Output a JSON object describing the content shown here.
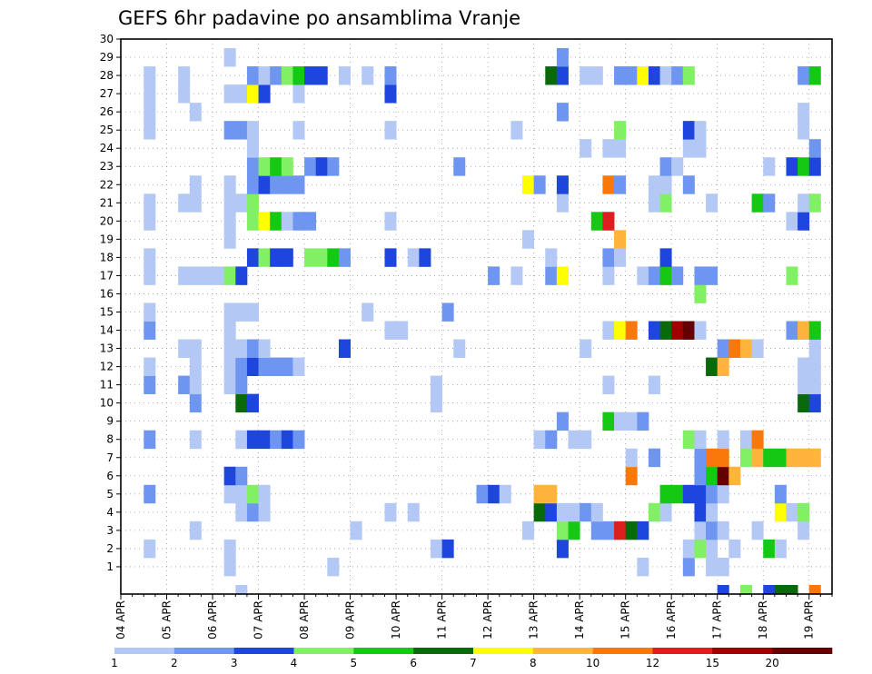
{
  "chart_data": {
    "type": "heatmap",
    "title": "GEFS 6hr padavine po ansamblima Vranje",
    "xlabel": "",
    "ylabel": "",
    "x_time_slots": 62,
    "x_tick_labels": [
      "04 APR",
      "05 APR",
      "06 APR",
      "07 APR",
      "08 APR",
      "09 APR",
      "10 APR",
      "11 APR",
      "12 APR",
      "13 APR",
      "14 APR",
      "15 APR",
      "16 APR",
      "17 APR",
      "18 APR",
      "19 APR"
    ],
    "y_members": [
      1,
      2,
      3,
      4,
      5,
      6,
      7,
      8,
      9,
      10,
      11,
      12,
      13,
      14,
      15,
      16,
      17,
      18,
      19,
      20,
      21,
      22,
      23,
      24,
      25,
      26,
      27,
      28,
      29,
      30
    ],
    "color_levels": [
      1,
      2,
      3,
      4,
      5,
      6,
      7,
      8,
      10,
      12,
      15,
      20
    ],
    "color_level_labels": [
      "1",
      "2",
      "3",
      "4",
      "5",
      "6",
      "7",
      "8",
      "10",
      "12",
      "15",
      "20"
    ],
    "colors": [
      "#b4c8f5",
      "#6e96f0",
      "#1e46dc",
      "#82f064",
      "#14c814",
      "#0a690a",
      "#ffff00",
      "#ffb43c",
      "#fa780a",
      "#dc1e1e",
      "#a00000",
      "#640000"
    ],
    "grid": "dotted",
    "cells": [
      [
        9,
        1,
        1
      ],
      [
        18,
        1,
        1
      ],
      [
        45,
        1,
        1
      ],
      [
        49,
        1,
        2
      ],
      [
        51,
        1,
        1
      ],
      [
        52,
        1,
        1
      ],
      [
        2,
        2,
        1
      ],
      [
        9,
        2,
        1
      ],
      [
        27,
        2,
        1
      ],
      [
        28,
        2,
        3
      ],
      [
        38,
        2,
        3
      ],
      [
        49,
        2,
        1
      ],
      [
        50,
        2,
        4
      ],
      [
        51,
        2,
        1
      ],
      [
        53,
        2,
        1
      ],
      [
        56,
        2,
        5
      ],
      [
        57,
        2,
        1
      ],
      [
        6,
        3,
        1
      ],
      [
        20,
        3,
        1
      ],
      [
        35,
        3,
        1
      ],
      [
        38,
        3,
        4
      ],
      [
        39,
        3,
        5
      ],
      [
        41,
        3,
        2
      ],
      [
        42,
        3,
        2
      ],
      [
        43,
        3,
        10
      ],
      [
        44,
        3,
        6
      ],
      [
        45,
        3,
        3
      ],
      [
        50,
        3,
        1
      ],
      [
        51,
        3,
        2
      ],
      [
        52,
        3,
        1
      ],
      [
        55,
        3,
        1
      ],
      [
        59,
        3,
        1
      ],
      [
        10,
        4,
        1
      ],
      [
        11,
        4,
        2
      ],
      [
        12,
        4,
        1
      ],
      [
        23,
        4,
        1
      ],
      [
        25,
        4,
        1
      ],
      [
        36,
        4,
        6
      ],
      [
        37,
        4,
        3
      ],
      [
        38,
        4,
        1
      ],
      [
        39,
        4,
        1
      ],
      [
        40,
        4,
        2
      ],
      [
        41,
        4,
        1
      ],
      [
        46,
        4,
        4
      ],
      [
        47,
        4,
        1
      ],
      [
        50,
        4,
        3
      ],
      [
        51,
        4,
        1
      ],
      [
        57,
        4,
        7
      ],
      [
        58,
        4,
        1
      ],
      [
        59,
        4,
        4
      ],
      [
        2,
        5,
        2
      ],
      [
        9,
        5,
        1
      ],
      [
        10,
        5,
        1
      ],
      [
        11,
        5,
        4
      ],
      [
        12,
        5,
        1
      ],
      [
        31,
        5,
        2
      ],
      [
        32,
        5,
        3
      ],
      [
        33,
        5,
        1
      ],
      [
        36,
        5,
        8
      ],
      [
        37,
        5,
        8
      ],
      [
        47,
        5,
        5
      ],
      [
        48,
        5,
        5
      ],
      [
        49,
        5,
        3
      ],
      [
        50,
        5,
        3
      ],
      [
        51,
        5,
        2
      ],
      [
        52,
        5,
        1
      ],
      [
        57,
        5,
        2
      ],
      [
        9,
        6,
        3
      ],
      [
        10,
        6,
        2
      ],
      [
        44,
        6,
        9
      ],
      [
        50,
        6,
        2
      ],
      [
        51,
        6,
        5
      ],
      [
        52,
        6,
        12
      ],
      [
        53,
        6,
        8
      ],
      [
        44,
        7,
        1
      ],
      [
        46,
        7,
        2
      ],
      [
        50,
        7,
        2
      ],
      [
        51,
        7,
        9
      ],
      [
        52,
        7,
        9
      ],
      [
        54,
        7,
        4
      ],
      [
        55,
        7,
        8
      ],
      [
        56,
        7,
        5
      ],
      [
        57,
        7,
        5
      ],
      [
        58,
        7,
        8
      ],
      [
        59,
        7,
        8
      ],
      [
        60,
        7,
        8
      ],
      [
        2,
        8,
        2
      ],
      [
        6,
        8,
        1
      ],
      [
        10,
        8,
        1
      ],
      [
        11,
        8,
        3
      ],
      [
        12,
        8,
        3
      ],
      [
        13,
        8,
        2
      ],
      [
        14,
        8,
        3
      ],
      [
        15,
        8,
        2
      ],
      [
        36,
        8,
        1
      ],
      [
        37,
        8,
        2
      ],
      [
        39,
        8,
        1
      ],
      [
        40,
        8,
        1
      ],
      [
        49,
        8,
        4
      ],
      [
        50,
        8,
        1
      ],
      [
        52,
        8,
        1
      ],
      [
        54,
        8,
        1
      ],
      [
        55,
        8,
        9
      ],
      [
        38,
        9,
        2
      ],
      [
        42,
        9,
        5
      ],
      [
        43,
        9,
        1
      ],
      [
        44,
        9,
        1
      ],
      [
        45,
        9,
        2
      ],
      [
        6,
        10,
        2
      ],
      [
        10,
        10,
        6
      ],
      [
        11,
        10,
        3
      ],
      [
        27,
        10,
        1
      ],
      [
        59,
        10,
        6
      ],
      [
        60,
        10,
        3
      ],
      [
        2,
        11,
        2
      ],
      [
        5,
        11,
        2
      ],
      [
        6,
        11,
        1
      ],
      [
        9,
        11,
        1
      ],
      [
        10,
        11,
        2
      ],
      [
        27,
        11,
        1
      ],
      [
        42,
        11,
        1
      ],
      [
        46,
        11,
        1
      ],
      [
        59,
        11,
        1
      ],
      [
        60,
        11,
        1
      ],
      [
        2,
        12,
        1
      ],
      [
        6,
        12,
        1
      ],
      [
        9,
        12,
        1
      ],
      [
        10,
        12,
        2
      ],
      [
        11,
        12,
        3
      ],
      [
        12,
        12,
        2
      ],
      [
        13,
        12,
        2
      ],
      [
        14,
        12,
        2
      ],
      [
        15,
        12,
        1
      ],
      [
        51,
        12,
        6
      ],
      [
        52,
        12,
        8
      ],
      [
        59,
        12,
        1
      ],
      [
        60,
        12,
        1
      ],
      [
        5,
        13,
        1
      ],
      [
        6,
        13,
        1
      ],
      [
        9,
        13,
        1
      ],
      [
        10,
        13,
        1
      ],
      [
        11,
        13,
        2
      ],
      [
        12,
        13,
        1
      ],
      [
        19,
        13,
        3
      ],
      [
        29,
        13,
        1
      ],
      [
        40,
        13,
        1
      ],
      [
        52,
        13,
        2
      ],
      [
        53,
        13,
        9
      ],
      [
        54,
        13,
        8
      ],
      [
        55,
        13,
        1
      ],
      [
        60,
        13,
        1
      ],
      [
        2,
        14,
        2
      ],
      [
        9,
        14,
        1
      ],
      [
        23,
        14,
        1
      ],
      [
        24,
        14,
        1
      ],
      [
        42,
        14,
        1
      ],
      [
        43,
        14,
        7
      ],
      [
        44,
        14,
        9
      ],
      [
        46,
        14,
        3
      ],
      [
        47,
        14,
        6
      ],
      [
        48,
        14,
        11
      ],
      [
        49,
        14,
        12
      ],
      [
        50,
        14,
        1
      ],
      [
        58,
        14,
        2
      ],
      [
        59,
        14,
        8
      ],
      [
        60,
        14,
        5
      ],
      [
        2,
        15,
        1
      ],
      [
        9,
        15,
        1
      ],
      [
        10,
        15,
        1
      ],
      [
        11,
        15,
        1
      ],
      [
        21,
        15,
        1
      ],
      [
        28,
        15,
        2
      ],
      [
        50,
        16,
        4
      ],
      [
        2,
        17,
        1
      ],
      [
        5,
        17,
        1
      ],
      [
        6,
        17,
        1
      ],
      [
        7,
        17,
        1
      ],
      [
        8,
        17,
        1
      ],
      [
        9,
        17,
        4
      ],
      [
        10,
        17,
        3
      ],
      [
        32,
        17,
        2
      ],
      [
        34,
        17,
        1
      ],
      [
        37,
        17,
        2
      ],
      [
        38,
        17,
        7
      ],
      [
        42,
        17,
        1
      ],
      [
        45,
        17,
        1
      ],
      [
        46,
        17,
        2
      ],
      [
        47,
        17,
        5
      ],
      [
        48,
        17,
        2
      ],
      [
        50,
        17,
        2
      ],
      [
        51,
        17,
        2
      ],
      [
        58,
        17,
        4
      ],
      [
        2,
        18,
        1
      ],
      [
        11,
        18,
        3
      ],
      [
        12,
        18,
        4
      ],
      [
        13,
        18,
        3
      ],
      [
        14,
        18,
        3
      ],
      [
        16,
        18,
        4
      ],
      [
        17,
        18,
        4
      ],
      [
        18,
        18,
        5
      ],
      [
        19,
        18,
        2
      ],
      [
        23,
        18,
        3
      ],
      [
        25,
        18,
        1
      ],
      [
        26,
        18,
        3
      ],
      [
        37,
        18,
        1
      ],
      [
        42,
        18,
        2
      ],
      [
        43,
        18,
        1
      ],
      [
        47,
        18,
        3
      ],
      [
        9,
        19,
        1
      ],
      [
        35,
        19,
        1
      ],
      [
        43,
        19,
        8
      ],
      [
        2,
        20,
        1
      ],
      [
        9,
        20,
        1
      ],
      [
        11,
        20,
        4
      ],
      [
        12,
        20,
        7
      ],
      [
        13,
        20,
        5
      ],
      [
        14,
        20,
        1
      ],
      [
        15,
        20,
        2
      ],
      [
        16,
        20,
        2
      ],
      [
        23,
        20,
        1
      ],
      [
        41,
        20,
        5
      ],
      [
        42,
        20,
        10
      ],
      [
        58,
        20,
        1
      ],
      [
        59,
        20,
        3
      ],
      [
        2,
        21,
        1
      ],
      [
        5,
        21,
        1
      ],
      [
        6,
        21,
        1
      ],
      [
        9,
        21,
        1
      ],
      [
        10,
        21,
        1
      ],
      [
        11,
        21,
        4
      ],
      [
        38,
        21,
        1
      ],
      [
        46,
        21,
        1
      ],
      [
        47,
        21,
        4
      ],
      [
        51,
        21,
        1
      ],
      [
        55,
        21,
        5
      ],
      [
        56,
        21,
        2
      ],
      [
        59,
        21,
        1
      ],
      [
        60,
        21,
        4
      ],
      [
        6,
        22,
        1
      ],
      [
        9,
        22,
        1
      ],
      [
        11,
        22,
        2
      ],
      [
        12,
        22,
        3
      ],
      [
        13,
        22,
        2
      ],
      [
        14,
        22,
        2
      ],
      [
        15,
        22,
        2
      ],
      [
        35,
        22,
        7
      ],
      [
        36,
        22,
        2
      ],
      [
        38,
        22,
        3
      ],
      [
        42,
        22,
        9
      ],
      [
        43,
        22,
        2
      ],
      [
        46,
        22,
        1
      ],
      [
        47,
        22,
        1
      ],
      [
        49,
        22,
        2
      ],
      [
        11,
        23,
        2
      ],
      [
        12,
        23,
        4
      ],
      [
        13,
        23,
        5
      ],
      [
        14,
        23,
        4
      ],
      [
        16,
        23,
        2
      ],
      [
        17,
        23,
        3
      ],
      [
        18,
        23,
        2
      ],
      [
        29,
        23,
        2
      ],
      [
        47,
        23,
        2
      ],
      [
        48,
        23,
        1
      ],
      [
        56,
        23,
        1
      ],
      [
        58,
        23,
        3
      ],
      [
        59,
        23,
        5
      ],
      [
        60,
        23,
        3
      ],
      [
        11,
        24,
        1
      ],
      [
        40,
        24,
        1
      ],
      [
        42,
        24,
        1
      ],
      [
        43,
        24,
        1
      ],
      [
        49,
        24,
        1
      ],
      [
        50,
        24,
        1
      ],
      [
        60,
        24,
        2
      ],
      [
        2,
        25,
        1
      ],
      [
        9,
        25,
        2
      ],
      [
        10,
        25,
        2
      ],
      [
        11,
        25,
        1
      ],
      [
        15,
        25,
        1
      ],
      [
        23,
        25,
        1
      ],
      [
        34,
        25,
        1
      ],
      [
        43,
        25,
        4
      ],
      [
        49,
        25,
        3
      ],
      [
        50,
        25,
        1
      ],
      [
        59,
        25,
        1
      ],
      [
        2,
        26,
        1
      ],
      [
        6,
        26,
        1
      ],
      [
        38,
        26,
        2
      ],
      [
        59,
        26,
        1
      ],
      [
        2,
        27,
        1
      ],
      [
        5,
        27,
        1
      ],
      [
        9,
        27,
        1
      ],
      [
        10,
        27,
        1
      ],
      [
        11,
        27,
        7
      ],
      [
        12,
        27,
        3
      ],
      [
        15,
        27,
        1
      ],
      [
        23,
        27,
        3
      ],
      [
        2,
        28,
        1
      ],
      [
        5,
        28,
        1
      ],
      [
        11,
        28,
        2
      ],
      [
        12,
        28,
        1
      ],
      [
        13,
        28,
        2
      ],
      [
        14,
        28,
        4
      ],
      [
        15,
        28,
        5
      ],
      [
        16,
        28,
        3
      ],
      [
        17,
        28,
        3
      ],
      [
        19,
        28,
        1
      ],
      [
        21,
        28,
        1
      ],
      [
        23,
        28,
        2
      ],
      [
        37,
        28,
        6
      ],
      [
        38,
        28,
        3
      ],
      [
        40,
        28,
        1
      ],
      [
        41,
        28,
        1
      ],
      [
        43,
        28,
        2
      ],
      [
        44,
        28,
        2
      ],
      [
        45,
        28,
        7
      ],
      [
        46,
        28,
        3
      ],
      [
        47,
        28,
        1
      ],
      [
        48,
        28,
        2
      ],
      [
        49,
        28,
        4
      ],
      [
        59,
        28,
        2
      ],
      [
        60,
        28,
        5
      ],
      [
        9,
        29,
        1
      ],
      [
        38,
        29,
        2
      ],
      [
        10,
        0,
        1
      ],
      [
        52,
        0,
        3
      ],
      [
        54,
        0,
        4
      ],
      [
        56,
        0,
        3
      ],
      [
        57,
        0,
        6
      ],
      [
        58,
        0,
        6
      ],
      [
        60,
        0,
        9
      ]
    ]
  }
}
